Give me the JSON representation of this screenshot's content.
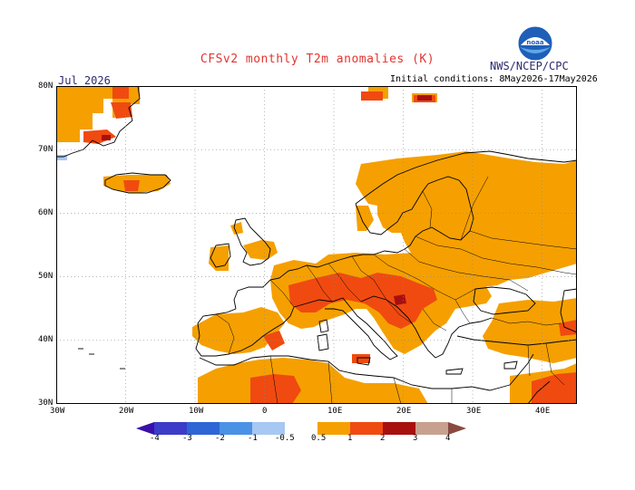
{
  "header": {
    "title": "CFSv2 monthly T2m anomalies (K)",
    "agency": "NWS/NCEP/CPC",
    "agency_logo": "noaa-logo-icon",
    "month": "Jul 2026",
    "initial_conditions": "Initial conditions: 8May2026-17May2026"
  },
  "map": {
    "lat_labels": [
      "80N",
      "70N",
      "60N",
      "50N",
      "40N",
      "30N"
    ],
    "lon_labels": [
      "30W",
      "20W",
      "10W",
      "0",
      "10E",
      "20E",
      "30E",
      "40E"
    ],
    "extent": {
      "lon": [
        -30,
        45
      ],
      "lat": [
        30,
        80
      ]
    },
    "grid": "dotted",
    "colors": {
      "land_outline": "#000000",
      "ocean": "#ffffff"
    }
  },
  "colorbar": {
    "labels": [
      "-4",
      "-3",
      "-2",
      "-1",
      "-0.5",
      "0.5",
      "1",
      "2",
      "3",
      "4"
    ],
    "colors": [
      "#3a10a8",
      "#3c3cc8",
      "#2e66d6",
      "#4a92e6",
      "#a6c8f2",
      "#ffffff",
      "#f5a000",
      "#f04a10",
      "#a81010",
      "#c8a090",
      "#8a4a40"
    ]
  }
}
